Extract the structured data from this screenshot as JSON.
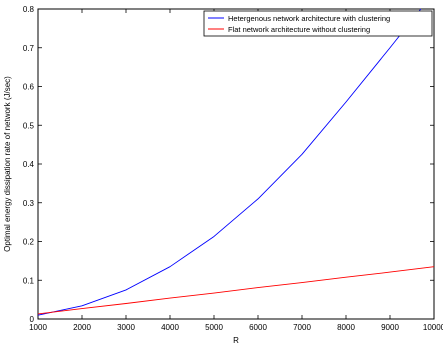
{
  "chart_data": {
    "type": "line",
    "title": "",
    "xlabel": "R",
    "ylabel": "Optimal energy dissipation rate of network (J/sec)",
    "xlim": [
      1000,
      10000
    ],
    "ylim": [
      0,
      0.8
    ],
    "xticks": [
      1000,
      2000,
      3000,
      4000,
      5000,
      6000,
      7000,
      8000,
      9000,
      10000
    ],
    "yticks": [
      0,
      0.1,
      0.2,
      0.3,
      0.4,
      0.5,
      0.6,
      0.7,
      0.8
    ],
    "xtick_labels": [
      "1000",
      "2000",
      "3000",
      "4000",
      "5000",
      "6000",
      "7000",
      "8000",
      "9000",
      "10000"
    ],
    "ytick_labels": [
      "0",
      "0.1",
      "0.2",
      "0.3",
      "0.4",
      "0.5",
      "0.6",
      "0.7",
      "0.8"
    ],
    "grid": false,
    "legend_position": "top-right",
    "series": [
      {
        "name": "Hetergenous network architecture with clustering",
        "color": "#0000ff",
        "x": [
          1000,
          2000,
          3000,
          4000,
          5000,
          6000,
          7000,
          8000,
          9000,
          9700
        ],
        "y": [
          0.01,
          0.034,
          0.075,
          0.135,
          0.213,
          0.31,
          0.425,
          0.56,
          0.7,
          0.8
        ]
      },
      {
        "name": "Flat network architecture without clustering",
        "color": "#ff0000",
        "x": [
          1000,
          2000,
          3000,
          4000,
          5000,
          6000,
          7000,
          8000,
          9000,
          10000
        ],
        "y": [
          0.013,
          0.027,
          0.04,
          0.054,
          0.067,
          0.081,
          0.094,
          0.108,
          0.121,
          0.135
        ]
      }
    ]
  }
}
